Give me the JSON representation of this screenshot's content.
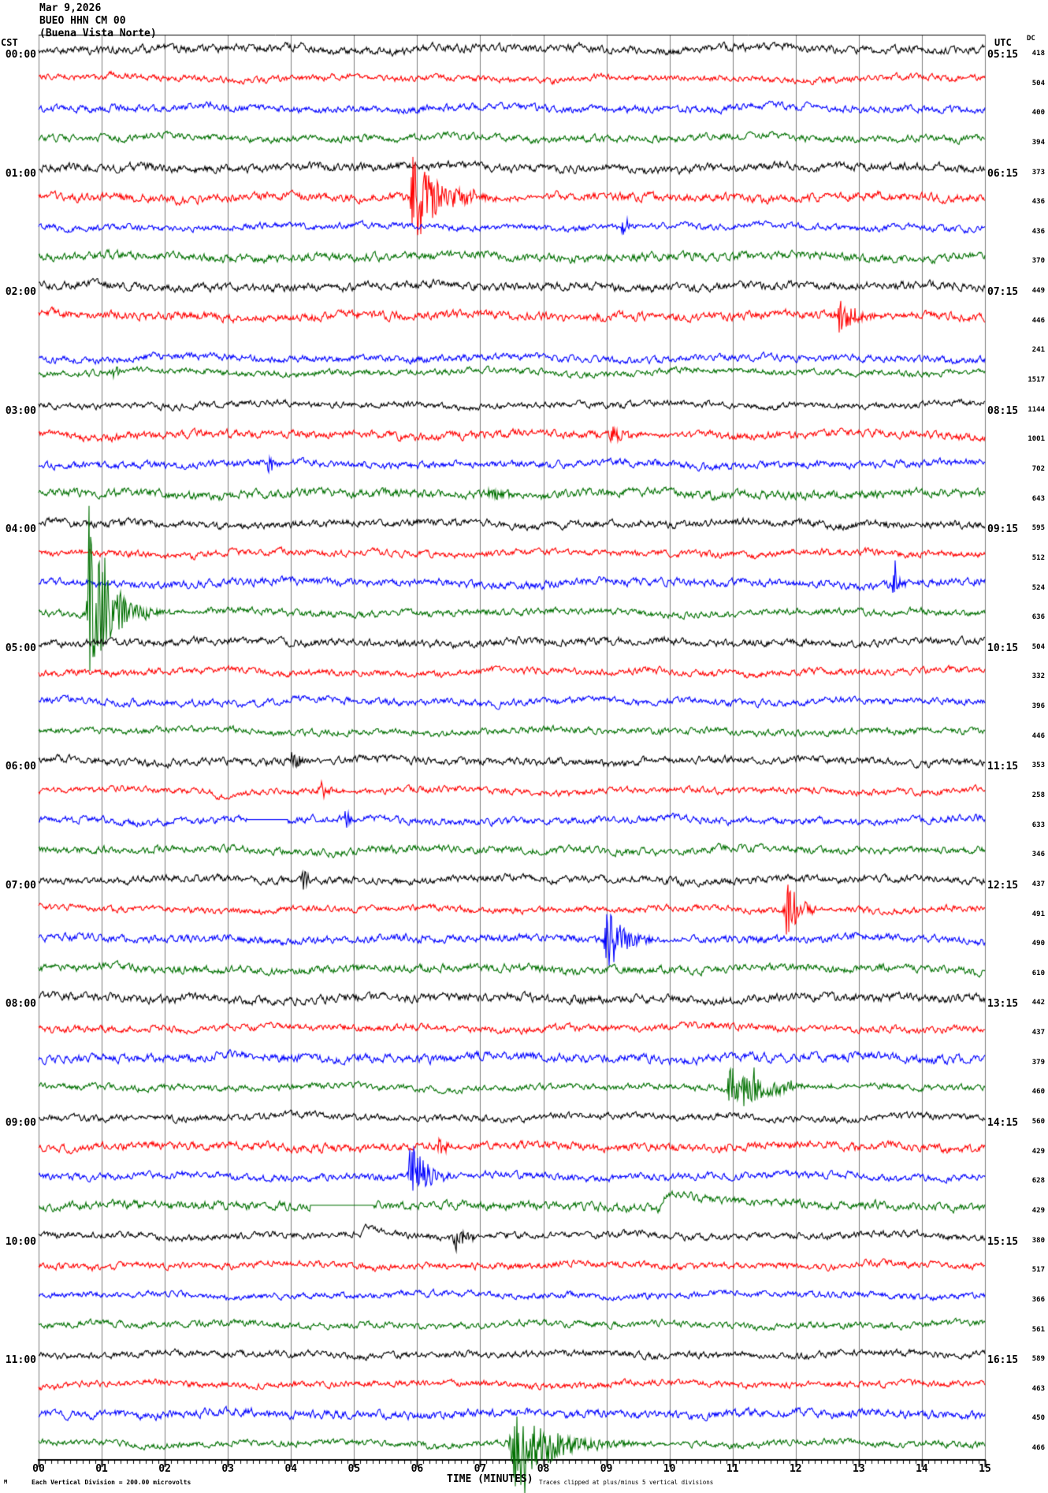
{
  "header": {
    "date": "Mar 9,2026",
    "station": "BUEO HHN CM 00",
    "station_name": "(Buena Vista Norte)"
  },
  "axes": {
    "left_label": "CST",
    "right_label": "UTC",
    "dc_label": "DC",
    "x_title": "TIME (MINUTES)",
    "x_ticks": [
      "00",
      "01",
      "02",
      "03",
      "04",
      "05",
      "06",
      "07",
      "08",
      "09",
      "10",
      "11",
      "12",
      "13",
      "14",
      "15"
    ],
    "x_range_minutes": [
      0,
      15
    ],
    "minutes_per_line": 15,
    "grid": "vertical lines at every minute"
  },
  "footer": {
    "scale_note": "Each Vertical Division =  200.00 microvolts",
    "clip_note": "Traces clipped at plus/minus 5 vertical divisions",
    "corner_mark": "M"
  },
  "colors": {
    "black": "#000000",
    "red": "#ff0000",
    "blue": "#0000ff",
    "green": "#007000",
    "grid": "#7f7f7f",
    "background": "#ffffff"
  },
  "chart_data": {
    "type": "line",
    "subtype": "helicorder-seismogram",
    "title": "BUEO HHN CM 00 (Buena Vista Norte) Mar 9,2026",
    "trace_color_cycle": [
      "black",
      "red",
      "blue",
      "green"
    ],
    "rows": [
      {
        "cst": "00:00",
        "utc": "05:15",
        "color": "black",
        "dc": 418,
        "events": []
      },
      {
        "color": "red",
        "dc": 504,
        "events": [
          {
            "type": "bump",
            "t": 1.05,
            "amp": 8,
            "tau": 0.5
          }
        ]
      },
      {
        "color": "blue",
        "dc": 400,
        "events": []
      },
      {
        "color": "green",
        "dc": 394,
        "events": []
      },
      {
        "cst": "01:00",
        "utc": "06:15",
        "color": "black",
        "dc": 373,
        "events": []
      },
      {
        "color": "red",
        "dc": 436,
        "events": [
          {
            "type": "burst",
            "t": 5.88,
            "dur": 1.9,
            "amp": 55,
            "decay": 0.45
          }
        ]
      },
      {
        "color": "blue",
        "dc": 436,
        "events": [
          {
            "type": "burst",
            "t": 9.2,
            "dur": 0.5,
            "amp": 11,
            "decay": 0.15
          }
        ]
      },
      {
        "color": "green",
        "dc": 370,
        "events": []
      },
      {
        "cst": "02:00",
        "utc": "07:15",
        "color": "black",
        "dc": 449,
        "events": []
      },
      {
        "color": "red",
        "dc": 446,
        "events": [
          {
            "type": "burst",
            "t": 12.65,
            "dur": 0.9,
            "amp": 22,
            "decay": 0.3
          }
        ]
      },
      {
        "color": "blue",
        "dc": 241,
        "offset": 16,
        "events": []
      },
      {
        "color": "green",
        "dc": 1517,
        "offset": -4,
        "events": [
          {
            "type": "burst",
            "t": 1.15,
            "dur": 0.25,
            "amp": 11,
            "decay": 0.08
          }
        ]
      },
      {
        "cst": "03:00",
        "utc": "08:15",
        "color": "black",
        "dc": 1144,
        "events": []
      },
      {
        "color": "red",
        "dc": 1001,
        "events": [
          {
            "type": "burst",
            "t": 8.95,
            "dur": 1.0,
            "amp": 12,
            "decay": 0.35
          }
        ]
      },
      {
        "color": "blue",
        "dc": 702,
        "events": [
          {
            "type": "burst",
            "t": 3.6,
            "dur": 0.4,
            "amp": 12,
            "decay": 0.12
          }
        ]
      },
      {
        "color": "green",
        "dc": 643,
        "events": [
          {
            "type": "burst",
            "t": 7.1,
            "dur": 0.7,
            "amp": 13,
            "decay": 0.25
          }
        ]
      },
      {
        "cst": "04:00",
        "utc": "09:15",
        "color": "black",
        "dc": 595,
        "events": []
      },
      {
        "color": "red",
        "dc": 512,
        "events": []
      },
      {
        "color": "blue",
        "dc": 524,
        "events": [
          {
            "type": "burst",
            "t": 13.5,
            "dur": 0.3,
            "amp": 24,
            "decay": 0.1
          }
        ]
      },
      {
        "color": "green",
        "dc": 636,
        "events": [
          {
            "type": "burst",
            "t": 0.75,
            "dur": 1.1,
            "amp": 95,
            "decay": 0.35,
            "bias": -10
          }
        ]
      },
      {
        "cst": "05:00",
        "utc": "10:15",
        "color": "black",
        "dc": 504,
        "events": []
      },
      {
        "color": "red",
        "dc": 332,
        "events": []
      },
      {
        "color": "blue",
        "dc": 396,
        "events": []
      },
      {
        "color": "green",
        "dc": 446,
        "events": []
      },
      {
        "cst": "06:00",
        "utc": "11:15",
        "color": "black",
        "dc": 353,
        "events": [
          {
            "type": "burst",
            "t": 3.95,
            "dur": 0.6,
            "amp": 11,
            "decay": 0.2
          }
        ]
      },
      {
        "color": "red",
        "dc": 258,
        "events": [
          {
            "type": "bump",
            "t": 2.75,
            "amp": -10,
            "tau": 0.3
          },
          {
            "type": "burst",
            "t": 4.42,
            "dur": 0.5,
            "amp": 16,
            "decay": 0.15
          }
        ]
      },
      {
        "color": "blue",
        "dc": 633,
        "events": [
          {
            "type": "dropout",
            "t": 3.3,
            "dur": 0.65
          },
          {
            "type": "burst",
            "t": 4.82,
            "dur": 0.25,
            "amp": 16,
            "decay": 0.08
          }
        ]
      },
      {
        "color": "green",
        "dc": 346,
        "events": []
      },
      {
        "cst": "07:00",
        "utc": "12:15",
        "color": "black",
        "dc": 437,
        "events": [
          {
            "type": "burst",
            "t": 4.15,
            "dur": 0.2,
            "amp": 16,
            "decay": 0.07
          }
        ]
      },
      {
        "color": "red",
        "dc": 491,
        "events": [
          {
            "type": "burst",
            "t": 11.8,
            "dur": 0.8,
            "amp": 45,
            "decay": 0.2
          }
        ]
      },
      {
        "color": "blue",
        "dc": 490,
        "events": [
          {
            "type": "burst",
            "t": 8.95,
            "dur": 0.9,
            "amp": 42,
            "decay": 0.3
          }
        ]
      },
      {
        "color": "green",
        "dc": 610,
        "events": []
      },
      {
        "cst": "08:00",
        "utc": "13:15",
        "color": "black",
        "dc": 442,
        "events": []
      },
      {
        "color": "red",
        "dc": 437,
        "events": []
      },
      {
        "color": "blue",
        "dc": 379,
        "events": []
      },
      {
        "color": "green",
        "dc": 460,
        "events": [
          {
            "type": "burst",
            "t": 10.9,
            "dur": 1.4,
            "amp": 38,
            "decay": 0.5
          }
        ]
      },
      {
        "cst": "09:00",
        "utc": "14:15",
        "color": "black",
        "dc": 560,
        "events": []
      },
      {
        "color": "red",
        "dc": 429,
        "events": [
          {
            "type": "burst",
            "t": 6.3,
            "dur": 0.4,
            "amp": 13,
            "decay": 0.15
          }
        ]
      },
      {
        "color": "blue",
        "dc": 628,
        "events": [
          {
            "type": "burst",
            "t": 5.85,
            "dur": 0.8,
            "amp": 45,
            "decay": 0.25
          }
        ]
      },
      {
        "color": "green",
        "dc": 429,
        "events": [
          {
            "type": "dropout",
            "t": 4.3,
            "dur": 1.0
          },
          {
            "type": "bump",
            "t": 9.85,
            "amp": 20,
            "tau": 0.9
          }
        ]
      },
      {
        "cst": "10:00",
        "utc": "15:15",
        "color": "black",
        "dc": 380,
        "events": [
          {
            "type": "bump",
            "t": 5.1,
            "amp": 10,
            "tau": 0.35
          },
          {
            "type": "burst",
            "t": 6.55,
            "dur": 0.5,
            "amp": 18,
            "decay": 0.18
          }
        ]
      },
      {
        "color": "red",
        "dc": 517,
        "events": []
      },
      {
        "color": "blue",
        "dc": 366,
        "events": []
      },
      {
        "color": "green",
        "dc": 561,
        "events": []
      },
      {
        "cst": "11:00",
        "utc": "16:15",
        "color": "black",
        "dc": 589,
        "events": []
      },
      {
        "color": "red",
        "dc": 463,
        "events": []
      },
      {
        "color": "blue",
        "dc": 450,
        "events": []
      },
      {
        "color": "green",
        "dc": 466,
        "events": [
          {
            "type": "burst",
            "t": 7.45,
            "dur": 1.6,
            "amp": 55,
            "decay": 0.6,
            "bias": 12
          }
        ]
      }
    ]
  }
}
